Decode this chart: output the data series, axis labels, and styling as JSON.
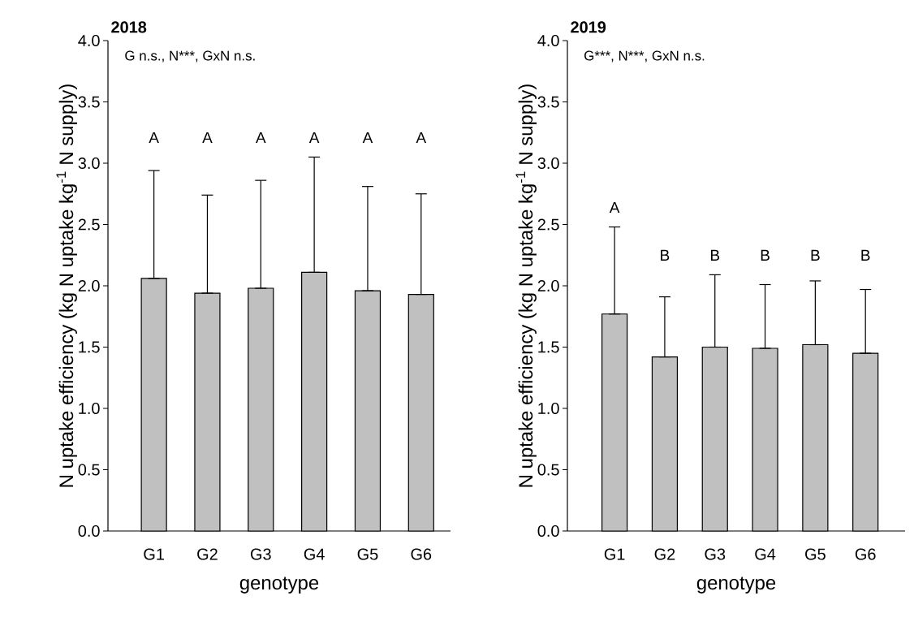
{
  "chart_data": [
    {
      "type": "bar",
      "title": "2018",
      "xlabel": "genotype",
      "ylabel": "N uptake efficiency (kg N uptake kg$^{-1}$ N supply)",
      "categories": [
        "G1",
        "G2",
        "G3",
        "G4",
        "G5",
        "G6"
      ],
      "values": [
        2.06,
        1.94,
        1.98,
        2.11,
        1.96,
        1.93
      ],
      "errors": [
        [
          2.06,
          2.94
        ],
        [
          1.94,
          2.74
        ],
        [
          1.98,
          2.86
        ],
        [
          2.11,
          3.05
        ],
        [
          1.96,
          2.81
        ],
        [
          1.93,
          2.75
        ]
      ],
      "color": "#c0c0c0",
      "ylim": [
        0,
        4
      ],
      "yticks": [
        {
          "value": 0,
          "label": "0.0"
        },
        {
          "value": 0.5,
          "label": "0.5"
        },
        {
          "value": 1,
          "label": "1.0"
        },
        {
          "value": 1.5,
          "label": "1.5"
        },
        {
          "value": 2,
          "label": "2.0"
        },
        {
          "value": 2.5,
          "label": "2.5"
        },
        {
          "value": 3,
          "label": "3.0"
        },
        {
          "value": 3.5,
          "label": "3.5"
        },
        {
          "value": 4,
          "label": "4.0"
        }
      ],
      "annotations": [
        "G n.s., N***, GxN n.s.",
        "A",
        "A",
        "A",
        "A",
        "A",
        "A"
      ]
    },
    {
      "type": "bar",
      "title": "2019",
      "xlabel": "genotype",
      "ylabel": "N uptake efficiency (kg N uptake kg$^{-1}$ N supply)",
      "categories": [
        "G1",
        "G2",
        "G3",
        "G4",
        "G5",
        "G6"
      ],
      "values": [
        1.77,
        1.42,
        1.5,
        1.49,
        1.52,
        1.45
      ],
      "errors": [
        [
          1.77,
          2.48
        ],
        [
          1.42,
          1.91
        ],
        [
          1.5,
          2.09
        ],
        [
          1.49,
          2.01
        ],
        [
          1.52,
          2.04
        ],
        [
          1.45,
          1.97
        ]
      ],
      "color": "#c0c0c0",
      "ylim": [
        0,
        4
      ],
      "yticks": [
        {
          "value": 0,
          "label": "0.0"
        },
        {
          "value": 0.5,
          "label": "0.5"
        },
        {
          "value": 1,
          "label": "1.0"
        },
        {
          "value": 1.5,
          "label": "1.5"
        },
        {
          "value": 2,
          "label": "2.0"
        },
        {
          "value": 2.5,
          "label": "2.5"
        },
        {
          "value": 3,
          "label": "3.0"
        },
        {
          "value": 3.5,
          "label": "3.5"
        },
        {
          "value": 4,
          "label": "4.0"
        }
      ],
      "annotations": [
        "G***, N***, GxN n.s.",
        "A",
        "B",
        "B",
        "B",
        "B",
        "B"
      ]
    }
  ]
}
